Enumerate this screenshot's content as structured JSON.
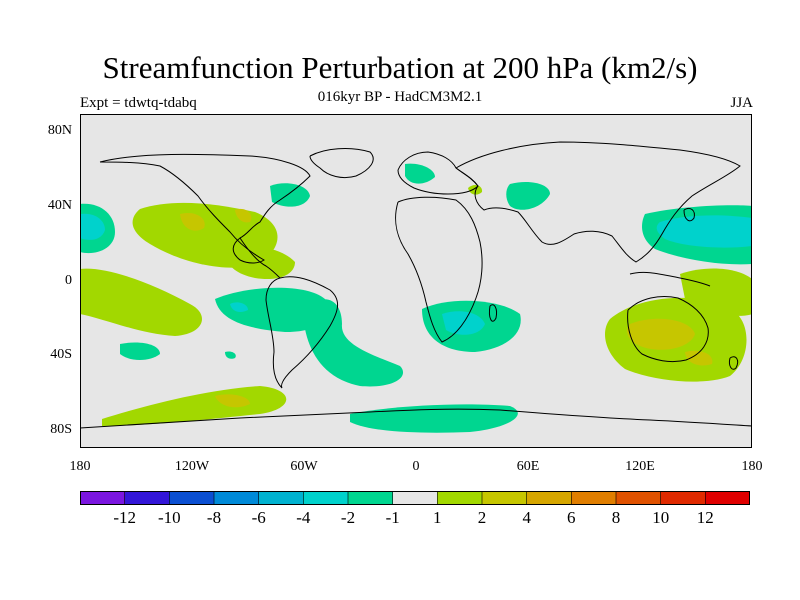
{
  "title": "Streamfunction Perturbation at 200 hPa (km2/s)",
  "subtitle": "016kyr BP - HadCM3M2.1",
  "left_label": "Expt = tdwtq-tdabq",
  "right_label": "JJA",
  "y_axis_labels": [
    "80N",
    "40N",
    "0",
    "40S",
    "80S"
  ],
  "x_axis_labels": [
    "180",
    "120W",
    "60W",
    "0",
    "60E",
    "120E",
    "180"
  ],
  "colorbar": {
    "colors": [
      "#7b16e0",
      "#3316d8",
      "#0b4fd2",
      "#008ad8",
      "#00b2d0",
      "#00d2cc",
      "#00d690",
      "#e6e6e6",
      "#a2d800",
      "#c6c600",
      "#d6a600",
      "#e07e00",
      "#e05200",
      "#e02a00",
      "#e00000"
    ],
    "labels": [
      "-12",
      "-10",
      "-8",
      "-6",
      "-4",
      "-2",
      "-1",
      "1",
      "2",
      "4",
      "6",
      "8",
      "10",
      "12"
    ]
  },
  "map": {
    "ocean_color": "#e6e6e6",
    "coast_color": "#000000"
  }
}
